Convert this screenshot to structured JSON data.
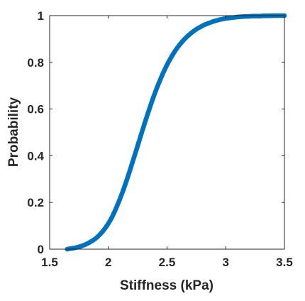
{
  "chart_data": {
    "type": "scatter",
    "title": "",
    "xlabel": "Stiffness (kPa)",
    "ylabel": "Probability",
    "xlim": [
      1.5,
      3.5
    ],
    "ylim": [
      0,
      1
    ],
    "xticks": [
      1.5,
      2,
      2.5,
      3,
      3.5
    ],
    "xtick_labels": [
      "1.5",
      "2",
      "2.5",
      "3",
      "3.5"
    ],
    "yticks": [
      0,
      0.2,
      0.4,
      0.6,
      0.8,
      1
    ],
    "ytick_labels": [
      "0",
      "0.2",
      "0.4",
      "0.6",
      "0.8",
      "1"
    ],
    "grid": false,
    "legend": "none",
    "marker_color": "#0072BD",
    "series": [
      {
        "x": [
          1.65,
          1.68,
          1.72,
          1.75,
          1.78,
          1.8,
          1.83,
          1.85,
          1.87,
          1.89,
          1.91,
          1.93,
          1.95,
          1.97,
          1.99,
          2.01,
          2.03,
          2.05,
          2.07,
          2.09,
          2.11,
          2.13,
          2.15,
          2.17,
          2.19,
          2.21,
          2.23,
          2.25,
          2.27,
          2.29,
          2.31,
          2.33,
          2.35,
          2.37,
          2.39,
          2.41,
          2.43,
          2.45,
          2.47,
          2.49,
          2.51,
          2.53,
          2.55,
          2.57,
          2.59,
          2.61,
          2.63,
          2.65,
          2.67,
          2.7,
          2.73,
          2.76,
          2.79,
          2.82,
          2.86,
          2.9,
          2.95,
          3.0,
          3.05,
          3.1,
          3.15,
          3.2,
          3.25,
          3.29,
          3.32,
          3.35,
          3.42,
          3.5
        ],
        "y": [
          0.0,
          0.003,
          0.006,
          0.01,
          0.015,
          0.019,
          0.026,
          0.032,
          0.038,
          0.045,
          0.054,
          0.064,
          0.075,
          0.088,
          0.102,
          0.118,
          0.136,
          0.157,
          0.18,
          0.204,
          0.23,
          0.257,
          0.286,
          0.316,
          0.347,
          0.379,
          0.411,
          0.443,
          0.476,
          0.508,
          0.54,
          0.571,
          0.601,
          0.631,
          0.659,
          0.686,
          0.711,
          0.735,
          0.758,
          0.779,
          0.799,
          0.817,
          0.834,
          0.85,
          0.864,
          0.877,
          0.889,
          0.9,
          0.91,
          0.923,
          0.935,
          0.945,
          0.953,
          0.961,
          0.969,
          0.976,
          0.983,
          0.988,
          0.991,
          0.994,
          0.996,
          0.997,
          0.998,
          0.998,
          0.999,
          0.999,
          1.0,
          1.0
        ]
      }
    ]
  }
}
